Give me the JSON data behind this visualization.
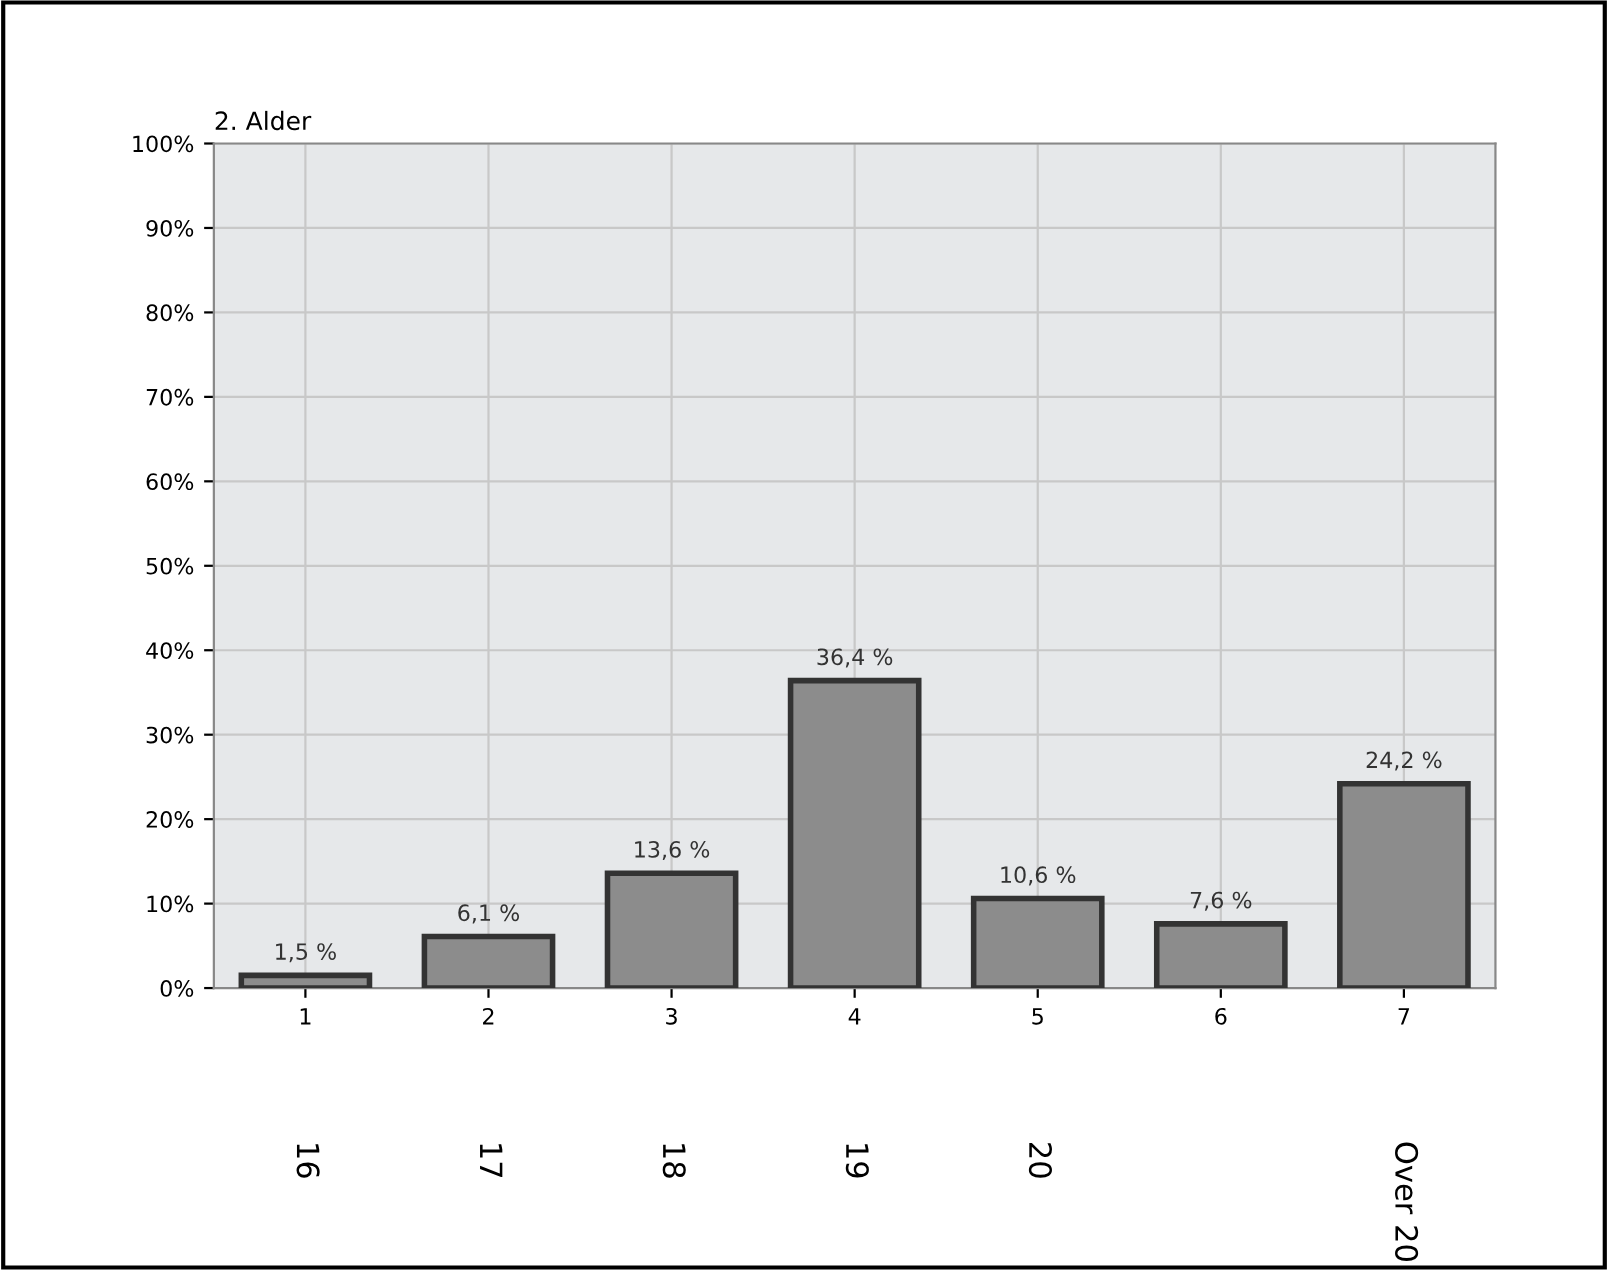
{
  "chart_data": {
    "type": "bar",
    "title": "2. Alder",
    "categories": [
      "1",
      "2",
      "3",
      "4",
      "5",
      "6",
      "7"
    ],
    "values": [
      1.5,
      6.1,
      13.6,
      36.4,
      10.6,
      7.6,
      24.2
    ],
    "value_labels": [
      "1,5 %",
      "6,1 %",
      "13,6 %",
      "36,4 %",
      "10,6 %",
      "7,6 %",
      "24,2 %"
    ],
    "color": "#8c8c8c",
    "annotations": [
      "16",
      "17",
      "18",
      "19",
      "20",
      null,
      "Over 20"
    ],
    "ylim": [
      0,
      100
    ],
    "yticks": [
      {
        "value": 0,
        "label": "0%"
      },
      {
        "value": 10,
        "label": "10%"
      },
      {
        "value": 20,
        "label": "20%"
      },
      {
        "value": 30,
        "label": "30%"
      },
      {
        "value": 40,
        "label": "40%"
      },
      {
        "value": 50,
        "label": "50%"
      },
      {
        "value": 60,
        "label": "60%"
      },
      {
        "value": 70,
        "label": "70%"
      },
      {
        "value": 80,
        "label": "80%"
      },
      {
        "value": 90,
        "label": "90%"
      },
      {
        "value": 100,
        "label": "100%"
      }
    ],
    "grid": true,
    "legend": false
  }
}
